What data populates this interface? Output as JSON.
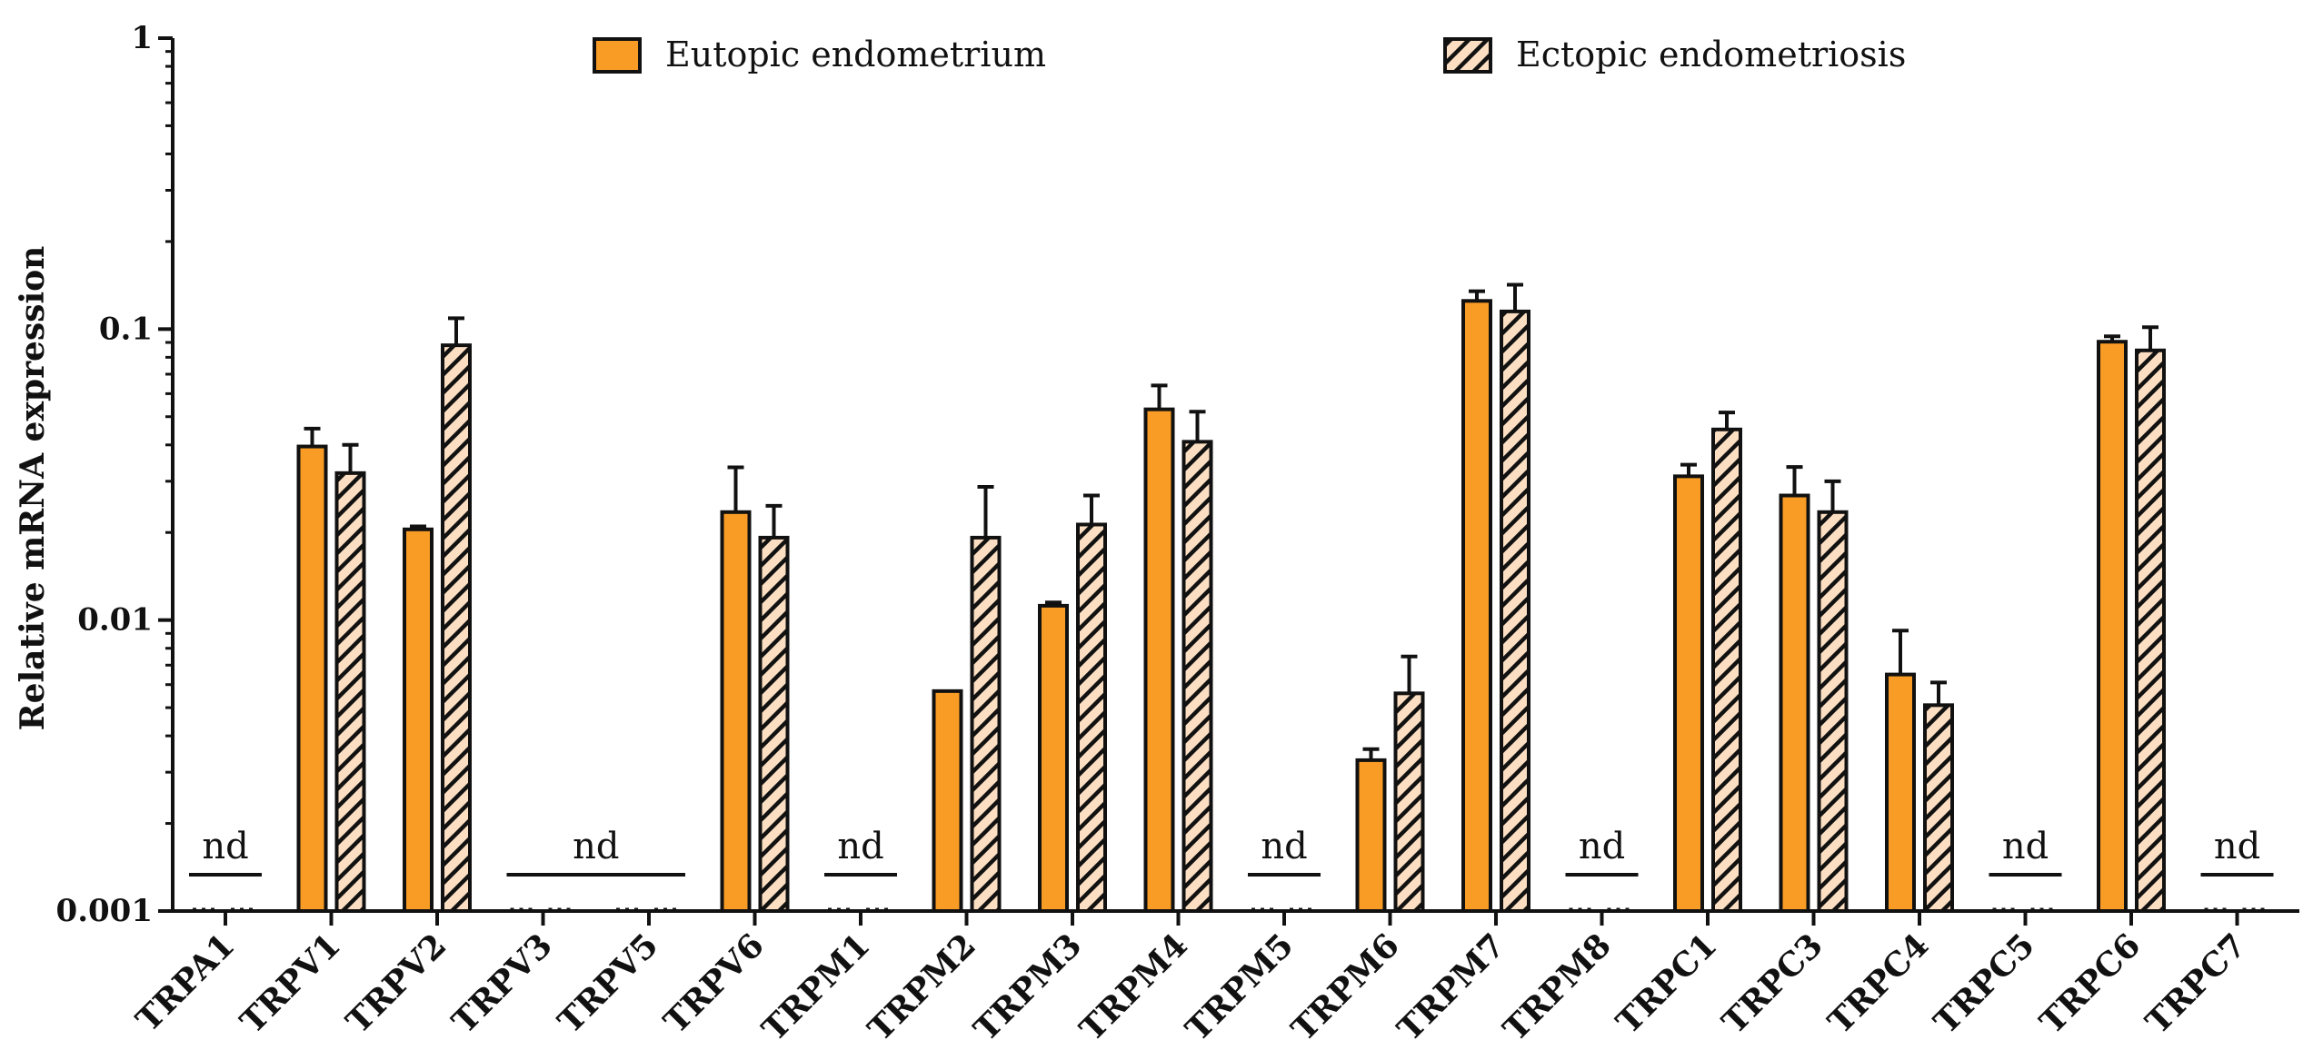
{
  "chart_data": {
    "type": "bar",
    "title": "",
    "xlabel": "",
    "ylabel": "Relative mRNA expression",
    "yscale": "log",
    "ylim": [
      0.001,
      1
    ],
    "yticks": [
      {
        "value": 0.001,
        "label": "0.001"
      },
      {
        "value": 0.01,
        "label": "0.01"
      },
      {
        "value": 0.1,
        "label": "0.1"
      },
      {
        "value": 1,
        "label": "1"
      }
    ],
    "categories": [
      "TRPA1",
      "TRPV1",
      "TRPV2",
      "TRPV3",
      "TRPV5",
      "TRPV6",
      "TRPM1",
      "TRPM2",
      "TRPM3",
      "TRPM4",
      "TRPM5",
      "TRPM6",
      "TRPM7",
      "TRPM8",
      "TRPC1",
      "TRPC3",
      "TRPC4",
      "TRPC5",
      "TRPC6",
      "TRPC7"
    ],
    "series": [
      {
        "name": "Eutopic endometrium",
        "color": "#F99C25",
        "pattern": "solid",
        "values": [
          null,
          0.0395,
          0.0205,
          null,
          null,
          0.0235,
          null,
          0.0057,
          0.0112,
          0.053,
          null,
          0.0033,
          0.125,
          null,
          0.0312,
          0.0268,
          0.0065,
          null,
          0.0905,
          null
        ],
        "errors": [
          null,
          0.006,
          0.0005,
          null,
          null,
          0.01,
          null,
          0,
          0.0003,
          0.011,
          null,
          0.0003,
          0.01,
          null,
          0.003,
          0.0068,
          0.0027,
          null,
          0.004,
          null
        ]
      },
      {
        "name": "Ectopic endometriosis",
        "color": "#FCDFC2",
        "pattern": "hatched",
        "values": [
          null,
          0.032,
          0.088,
          null,
          null,
          0.0192,
          null,
          0.0192,
          0.0213,
          0.041,
          null,
          0.0056,
          0.115,
          null,
          0.0452,
          0.0235,
          0.0051,
          null,
          0.0845,
          null
        ],
        "errors": [
          null,
          0.008,
          0.021,
          null,
          null,
          0.0055,
          null,
          0.0095,
          0.0055,
          0.011,
          null,
          0.0019,
          0.027,
          null,
          0.0065,
          0.0065,
          0.001,
          null,
          0.017,
          null
        ]
      }
    ],
    "legend_position": "top",
    "grid": false,
    "annotations": [
      {
        "text": "nd",
        "categories": [
          "TRPA1"
        ]
      },
      {
        "text": "nd",
        "categories": [
          "TRPV3",
          "TRPV5"
        ]
      },
      {
        "text": "nd",
        "categories": [
          "TRPM1"
        ]
      },
      {
        "text": "nd",
        "categories": [
          "TRPM5"
        ]
      },
      {
        "text": "nd",
        "categories": [
          "TRPM8"
        ]
      },
      {
        "text": "nd",
        "categories": [
          "TRPC5"
        ]
      },
      {
        "text": "nd",
        "categories": [
          "TRPC7"
        ]
      }
    ]
  }
}
